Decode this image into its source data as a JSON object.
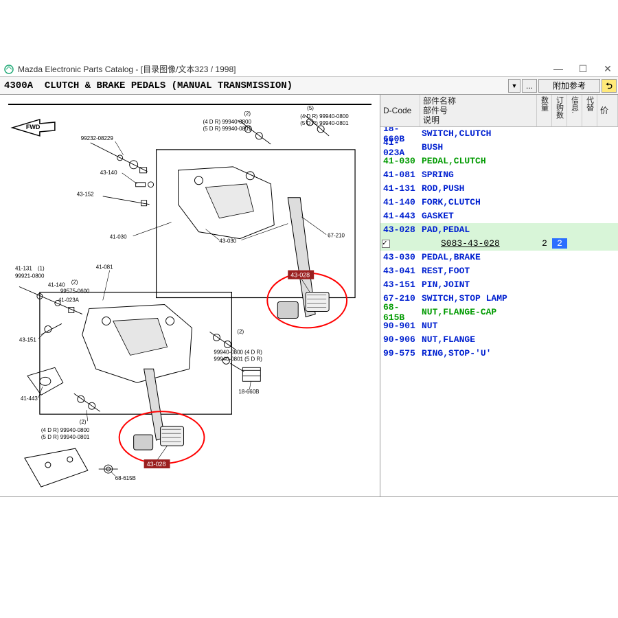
{
  "window": {
    "title": "Mazda Electronic Parts Catalog - [目录图像/文本323 / 1998]",
    "minimize": "—",
    "maximize": "☐",
    "close": "✕"
  },
  "toolbar": {
    "assembly_code": "4300A",
    "assembly_title": "CLUTCH & BRAKE PEDALS (MANUAL TRANSMISSION)",
    "btn_more": "...",
    "btn_ref": "附加参考",
    "btn_back": "⮌"
  },
  "table": {
    "head": {
      "dcode": "D-Code",
      "name_l1": "部件名称",
      "name_l2": "部件号",
      "name_l3": "说明",
      "qty": "数量",
      "ord": "订购数",
      "info": "信息.",
      "sub": "代替",
      "price": "价"
    },
    "rows": [
      {
        "dcode": "18-660B",
        "name": "SWITCH,CLUTCH",
        "color": "blue"
      },
      {
        "dcode": "41-023A",
        "name": "BUSH",
        "color": "blue"
      },
      {
        "dcode": "41-030",
        "name": "PEDAL,CLUTCH",
        "color": "green"
      },
      {
        "dcode": "41-081",
        "name": "SPRING",
        "color": "blue"
      },
      {
        "dcode": "41-131",
        "name": "ROD,PUSH",
        "color": "blue"
      },
      {
        "dcode": "41-140",
        "name": "FORK,CLUTCH",
        "color": "blue"
      },
      {
        "dcode": "41-443",
        "name": "GASKET",
        "color": "blue"
      },
      {
        "dcode": "43-028",
        "name": "PAD,PEDAL",
        "color": "blue",
        "highlighted": true
      },
      {
        "dcode": "_expand",
        "partnum": "S083-43-028",
        "qty": "2",
        "ord": "2",
        "expanded": true
      },
      {
        "dcode": "43-030",
        "name": "PEDAL,BRAKE",
        "color": "blue"
      },
      {
        "dcode": "43-041",
        "name": "REST,FOOT",
        "color": "blue"
      },
      {
        "dcode": "43-151",
        "name": "PIN,JOINT",
        "color": "blue"
      },
      {
        "dcode": "67-210",
        "name": "SWITCH,STOP LAMP",
        "color": "blue"
      },
      {
        "dcode": "68-615B",
        "name": "NUT,FLANGE-CAP",
        "color": "green"
      },
      {
        "dcode": "90-901",
        "name": "NUT",
        "color": "blue"
      },
      {
        "dcode": "90-906",
        "name": "NUT,FLANGE",
        "color": "blue"
      },
      {
        "dcode": "99-575",
        "name": "RING,STOP-'U'",
        "color": "blue"
      }
    ]
  },
  "diagram": {
    "fwd_label": "FWD",
    "callouts": {
      "c1": "99232-08229",
      "c2": "43-140",
      "c3": "43-152",
      "c4": "41-030",
      "c5": "41-131",
      "c6": "99921-0800",
      "c6n": "(1)",
      "c7": "41-140",
      "c8": "41-023A",
      "c9": "41-081",
      "c10": "99575-0600",
      "c10n": "(2)",
      "c11": "43-151",
      "c12": "41-443",
      "c12_4dr": "(4 D R) 99940-0800",
      "c12_5dr": "(5 D R) 99940-0801",
      "c12n": "(2)",
      "c13_4dr": "(4 D R) 99940-0800",
      "c13_5dr": "(5 D R) 99940-0801",
      "c13n": "(2)",
      "c13n2": "(5)",
      "c14": "43-030",
      "c15": "67-210",
      "c16_4dr": "99940-0800 (4 D R)",
      "c16_5dr": "99940-0801 (5 D R)",
      "c16n": "(2)",
      "c17": "18-660B",
      "c18": "68-615B",
      "hilite1": "43-028",
      "hilite2": "43-028"
    },
    "highlight_color": "#ff0000",
    "line_color": "#000000"
  }
}
